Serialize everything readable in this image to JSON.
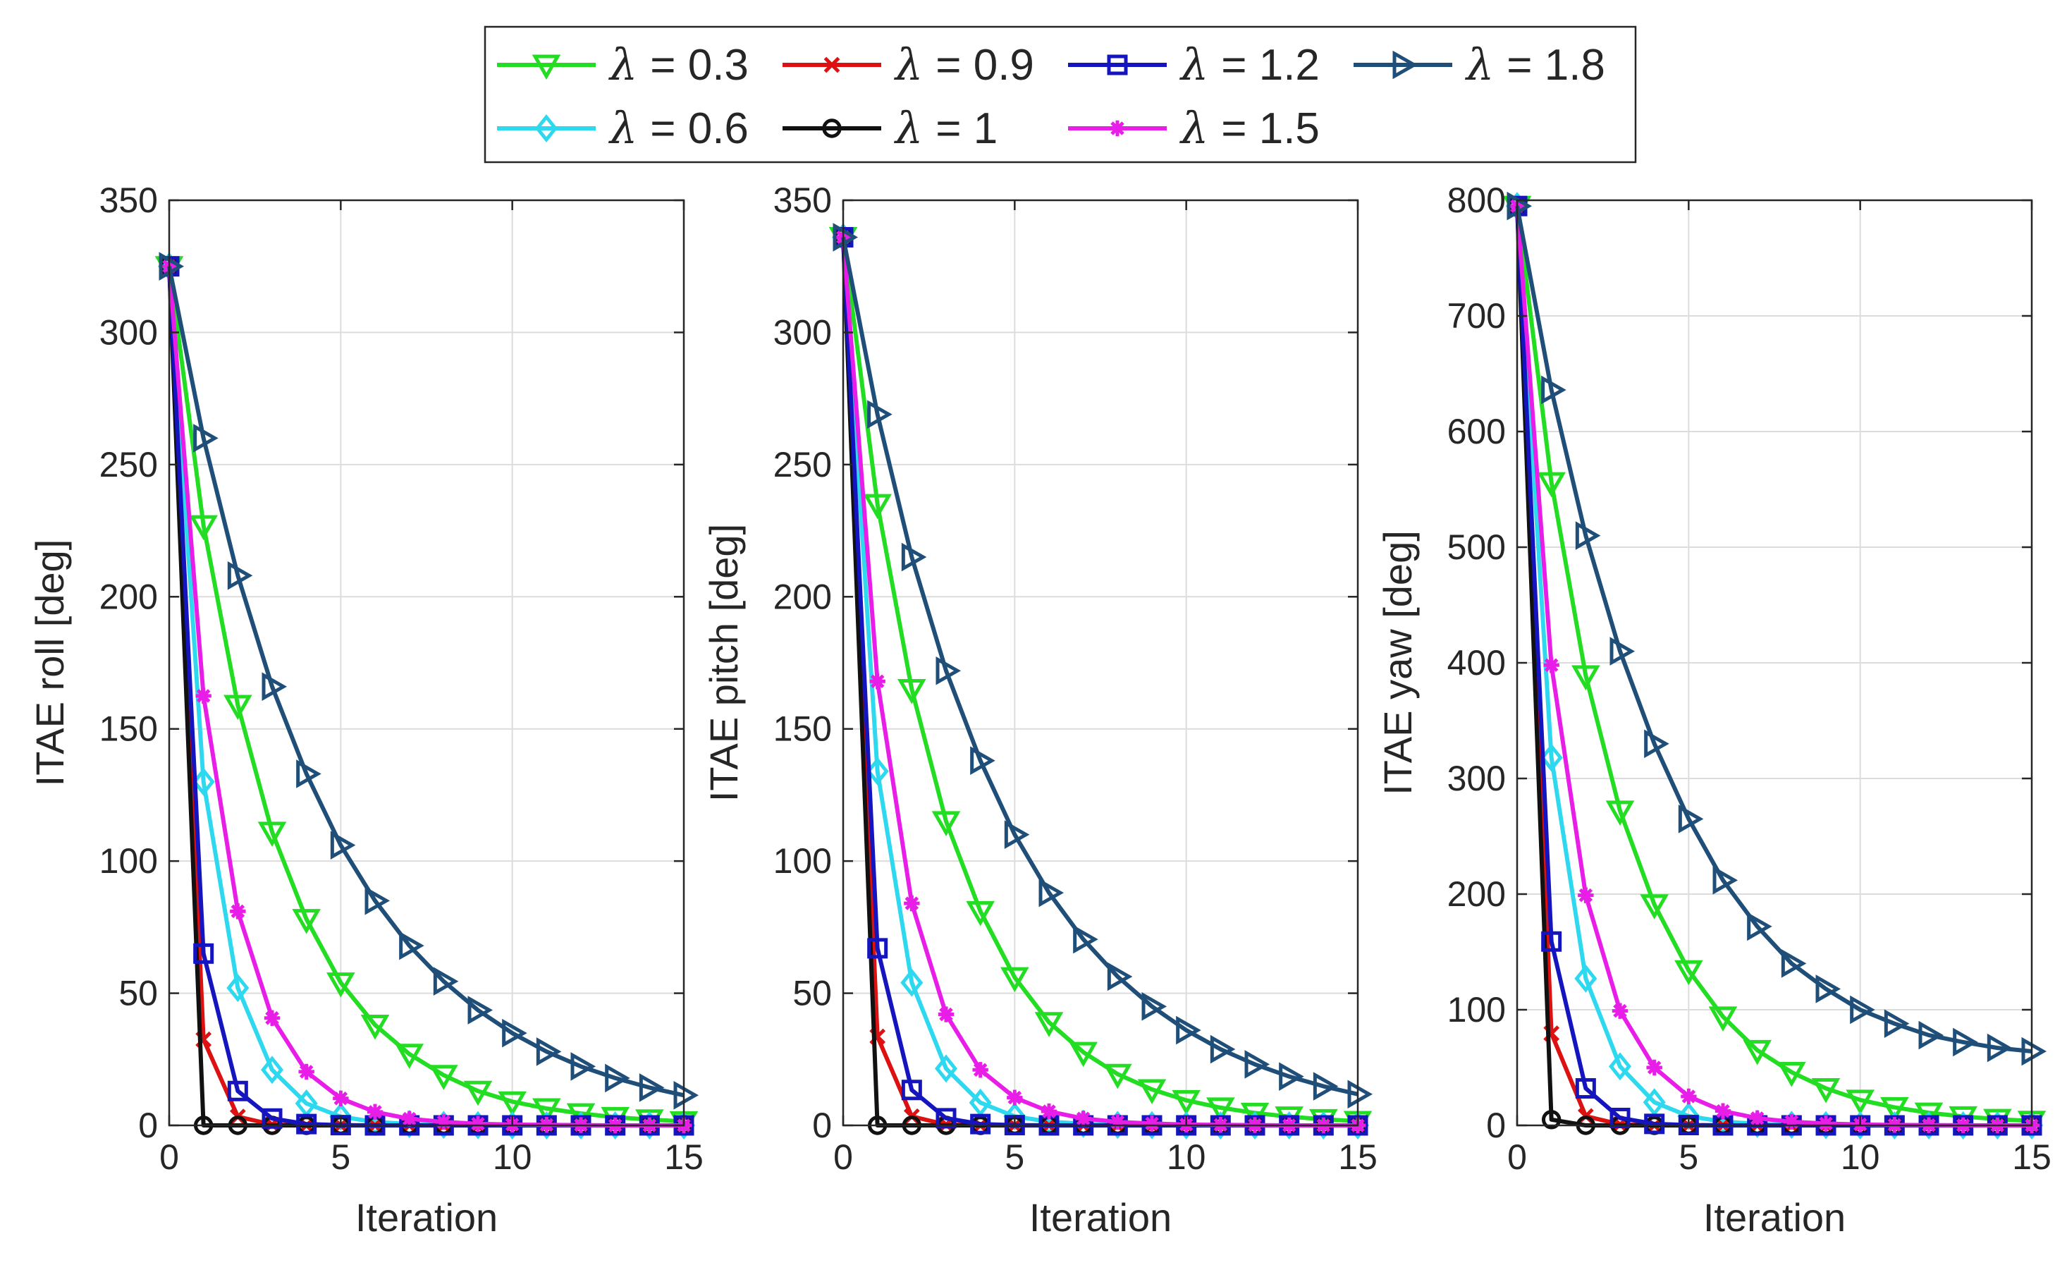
{
  "chart_data": [
    {
      "type": "line",
      "xlabel": "Iteration",
      "ylabel": "ITAE roll [deg]",
      "xlim": [
        0,
        15
      ],
      "ylim": [
        0,
        350
      ],
      "xticks": [
        0,
        5,
        10,
        15
      ],
      "yticks": [
        0,
        50,
        100,
        150,
        200,
        250,
        300,
        350
      ],
      "grid": true,
      "x": [
        0,
        1,
        2,
        3,
        4,
        5,
        6,
        7,
        8,
        9,
        10,
        11,
        12,
        13,
        14,
        15
      ],
      "series": [
        {
          "name": "λ = 0.3",
          "values": [
            325,
            227,
            159,
            111,
            78,
            54,
            38,
            27,
            19,
            13,
            9,
            6.4,
            4.5,
            3.1,
            2.2,
            1.5
          ]
        },
        {
          "name": "λ = 0.6",
          "values": [
            325,
            130,
            52,
            21,
            8.3,
            3.3,
            1.3,
            0.5,
            0.2,
            0.1,
            0,
            0,
            0,
            0,
            0,
            0
          ]
        },
        {
          "name": "λ = 0.9",
          "values": [
            325,
            32.5,
            3.3,
            0.3,
            0,
            0,
            0,
            0,
            0,
            0,
            0,
            0,
            0,
            0,
            0,
            0
          ]
        },
        {
          "name": "λ = 1",
          "values": [
            325,
            0,
            0,
            0,
            0,
            0,
            0,
            0,
            0,
            0,
            0,
            0,
            0,
            0,
            0,
            0
          ]
        },
        {
          "name": "λ = 1.2",
          "values": [
            325,
            65,
            13,
            2.6,
            0.5,
            0.1,
            0,
            0,
            0,
            0,
            0,
            0,
            0,
            0,
            0,
            0
          ]
        },
        {
          "name": "λ = 1.5",
          "values": [
            325,
            162.5,
            81,
            40.6,
            20.3,
            10.2,
            5.1,
            2.5,
            1.3,
            0.6,
            0.3,
            0.2,
            0.1,
            0,
            0,
            0
          ]
        },
        {
          "name": "λ = 1.8",
          "values": [
            325,
            260,
            208,
            166,
            133,
            106,
            85,
            68,
            54.5,
            43.6,
            34.9,
            27.9,
            22.3,
            17.9,
            14.3,
            11.4
          ]
        }
      ]
    },
    {
      "type": "line",
      "xlabel": "Iteration",
      "ylabel": "ITAE pitch [deg]",
      "xlim": [
        0,
        15
      ],
      "ylim": [
        0,
        350
      ],
      "xticks": [
        0,
        5,
        10,
        15
      ],
      "yticks": [
        0,
        50,
        100,
        150,
        200,
        250,
        300,
        350
      ],
      "grid": true,
      "x": [
        0,
        1,
        2,
        3,
        4,
        5,
        6,
        7,
        8,
        9,
        10,
        11,
        12,
        13,
        14,
        15
      ],
      "series": [
        {
          "name": "λ = 0.3",
          "values": [
            336,
            235,
            165,
            115,
            81,
            56,
            39,
            27.7,
            19.4,
            13.6,
            9.5,
            6.7,
            4.7,
            3.3,
            2.3,
            1.6
          ]
        },
        {
          "name": "λ = 0.6",
          "values": [
            336,
            134,
            54,
            21.5,
            8.6,
            3.4,
            1.4,
            0.6,
            0.2,
            0.1,
            0,
            0,
            0,
            0,
            0,
            0
          ]
        },
        {
          "name": "λ = 0.9",
          "values": [
            336,
            33.6,
            3.4,
            0.3,
            0,
            0,
            0,
            0,
            0,
            0,
            0,
            0,
            0,
            0,
            0,
            0
          ]
        },
        {
          "name": "λ = 1",
          "values": [
            336,
            0,
            0,
            0,
            0,
            0,
            0,
            0,
            0,
            0,
            0,
            0,
            0,
            0,
            0,
            0
          ]
        },
        {
          "name": "λ = 1.2",
          "values": [
            336,
            67,
            13.4,
            2.7,
            0.5,
            0.1,
            0,
            0,
            0,
            0,
            0,
            0,
            0,
            0,
            0,
            0
          ]
        },
        {
          "name": "λ = 1.5",
          "values": [
            336,
            168,
            84,
            42,
            21,
            10.5,
            5.3,
            2.6,
            1.3,
            0.7,
            0.3,
            0.2,
            0.1,
            0,
            0,
            0
          ]
        },
        {
          "name": "λ = 1.8",
          "values": [
            336,
            269,
            215,
            172,
            138,
            110,
            88,
            70.4,
            56.3,
            45,
            36,
            28.8,
            23.1,
            18.5,
            14.8,
            11.8
          ]
        }
      ]
    },
    {
      "type": "line",
      "xlabel": "Iteration",
      "ylabel": "ITAE yaw [deg]",
      "xlim": [
        0,
        15
      ],
      "ylim": [
        0,
        800
      ],
      "xticks": [
        0,
        5,
        10,
        15
      ],
      "yticks": [
        0,
        100,
        200,
        300,
        400,
        500,
        600,
        700,
        800
      ],
      "grid": true,
      "x": [
        0,
        1,
        2,
        3,
        4,
        5,
        6,
        7,
        8,
        9,
        10,
        11,
        12,
        13,
        14,
        15
      ],
      "series": [
        {
          "name": "λ = 0.3",
          "values": [
            795,
            556,
            389,
            272,
            191,
            134,
            94,
            65,
            46,
            32,
            22,
            15.6,
            10.9,
            7.7,
            5.4,
            3.8
          ]
        },
        {
          "name": "λ = 0.6",
          "values": [
            795,
            318,
            127,
            51,
            20,
            8,
            3.3,
            1.3,
            0.5,
            0.2,
            0,
            0,
            0,
            0,
            0,
            0
          ]
        },
        {
          "name": "λ = 0.9",
          "values": [
            795,
            79.5,
            8,
            0.8,
            0,
            0,
            0,
            0,
            0,
            0,
            0,
            0,
            0,
            0,
            0,
            0
          ]
        },
        {
          "name": "λ = 1",
          "values": [
            795,
            5,
            0,
            0,
            0,
            0,
            0,
            0,
            0,
            0,
            0,
            0,
            0,
            0,
            0,
            0
          ]
        },
        {
          "name": "λ = 1.2",
          "values": [
            795,
            159,
            32,
            6.4,
            1.3,
            0.3,
            0,
            0,
            0,
            0,
            0,
            0,
            0,
            0,
            0,
            0
          ]
        },
        {
          "name": "λ = 1.5",
          "values": [
            795,
            398,
            199,
            99,
            50,
            25,
            12.4,
            6.2,
            3.1,
            1.6,
            0.8,
            0.4,
            0.2,
            0.1,
            0,
            0
          ]
        },
        {
          "name": "λ = 1.8",
          "values": [
            795,
            636,
            510,
            410,
            330,
            265,
            212,
            172,
            140,
            118,
            100,
            88,
            78,
            72,
            67,
            64
          ]
        }
      ]
    }
  ],
  "legend": {
    "placement": "top-center",
    "entries": [
      {
        "symbol": "λ",
        "value": "= 0.3",
        "color": "#22DD22",
        "marker": "triangle-down"
      },
      {
        "symbol": "λ",
        "value": "= 0.9",
        "color": "#DD1111",
        "marker": "x"
      },
      {
        "symbol": "λ",
        "value": "= 1.2",
        "color": "#1515C0",
        "marker": "square"
      },
      {
        "symbol": "λ",
        "value": "= 1.8",
        "color": "#1F4E79",
        "marker": "triangle-right"
      },
      {
        "symbol": "λ",
        "value": "= 0.6",
        "color": "#2ED9F0",
        "marker": "diamond"
      },
      {
        "symbol": "λ",
        "value": "= 1",
        "color": "#111111",
        "marker": "circle"
      },
      {
        "symbol": "λ",
        "value": "= 1.5",
        "color": "#E81EE8",
        "marker": "asterisk"
      }
    ]
  }
}
